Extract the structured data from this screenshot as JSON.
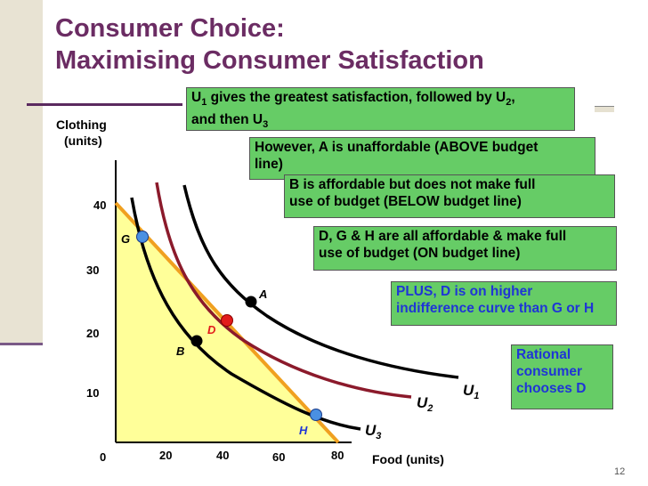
{
  "title_line1": "Consumer Choice:",
  "title_line2": "Maximising Consumer Satisfaction",
  "y_axis_label_line1": "Clothing",
  "y_axis_label_line2": "(units)",
  "x_axis_label": "Food (units)",
  "y_ticks": [
    "40",
    "30",
    "20",
    "10"
  ],
  "x_ticks": [
    "0",
    "20",
    "40",
    "60",
    "80"
  ],
  "curve_labels": {
    "u1": "U",
    "u1_sub": "1",
    "u2": "U",
    "u2_sub": "2",
    "u3": "U",
    "u3_sub": "3"
  },
  "points": [
    {
      "label": "G",
      "color": "#4a90e2"
    },
    {
      "label": "A",
      "color": "#000000"
    },
    {
      "label": "D",
      "color": "#e21b1b"
    },
    {
      "label": "B",
      "color": "#000000"
    },
    {
      "label": "H",
      "color": "#4a90e2"
    }
  ],
  "colors": {
    "title": "#6b2c63",
    "box_green": "#66cc66",
    "budget_area": "#ffff99",
    "budget_line": "#f0a020",
    "u1_curve": "#000000",
    "u2_curve": "#8b1a2b",
    "u3_curve": "#000000",
    "blue_text": "#1f35d6"
  },
  "boxes": {
    "b1_line1_pre": "U",
    "b1_line1_sub1": "1",
    "b1_line1_mid": " gives the greatest satisfaction, followed by U",
    "b1_line1_sub2": "2",
    "b1_line1_post": ",",
    "b1_line2_pre": "and then U",
    "b1_line2_sub": "3",
    "b2_line1": "However, A is unaffordable (ABOVE budget",
    "b2_line2": "line)",
    "b3_line1": "B is affordable but does not make full",
    "b3_line2": "use of budget (BELOW budget line)",
    "b4_line1": "D, G & H are all affordable & make full",
    "b4_line2": "use of budget (ON budget line)",
    "b5_line1": "PLUS, D is on higher",
    "b5_line2": "indifference curve than G or H",
    "b6_line1": "Rational",
    "b6_line2": "consumer",
    "b6_line3": "chooses D"
  },
  "page_number": "12"
}
